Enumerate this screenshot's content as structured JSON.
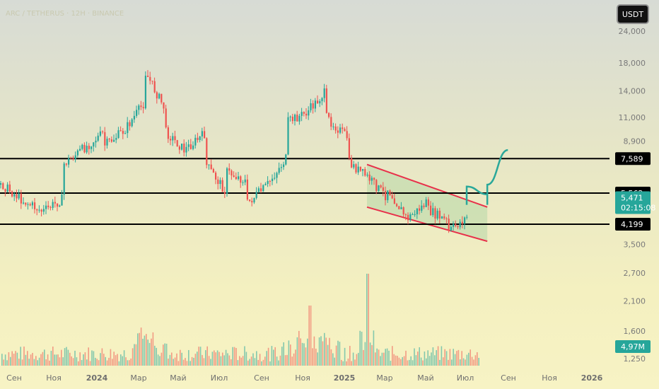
{
  "header": {
    "symbol_text": "ARC / TETHERUS · 12Н · BINANCE",
    "currency_button": "USDT"
  },
  "colors": {
    "up": "#26a69a",
    "down": "#ef5350",
    "level_line": "#000000",
    "channel_line": "#e8304a",
    "channel_fill": "#b7d7a8",
    "projection": "#2aa89a",
    "price_label_bg": "#26a69a",
    "level_label_bg": "#000000"
  },
  "chart_data": {
    "type": "candlestick",
    "price_scale": "log",
    "y_ticks": [
      {
        "label": "24,000",
        "value": 24000
      },
      {
        "label": "18,000",
        "value": 18000
      },
      {
        "label": "14,000",
        "value": 14000
      },
      {
        "label": "11,000",
        "value": 11000
      },
      {
        "label": "8,900",
        "value": 8900
      },
      {
        "label": "3,500",
        "value": 3500
      },
      {
        "label": "2,700",
        "value": 2700
      },
      {
        "label": "2,100",
        "value": 2100
      },
      {
        "label": "1,600",
        "value": 1600
      },
      {
        "label": "1,250",
        "value": 1250
      }
    ],
    "x_ticks": [
      "Сен",
      "Ноя",
      "2024",
      "Мар",
      "Май",
      "Июл",
      "Сен",
      "Ноя",
      "2025",
      "Мар",
      "Май",
      "Июл",
      "Сен",
      "Ноя",
      "2026"
    ],
    "horizontal_levels": [
      {
        "label": "7,589",
        "value": 7589
      },
      {
        "label": "5,562",
        "value": 5562
      },
      {
        "label": "4,199",
        "value": 4199
      }
    ],
    "current_price": {
      "label": "5,471",
      "value": 5471,
      "countdown": "02:15:08"
    },
    "volume_label": "4,97M",
    "price_path": [
      {
        "date": "2023-08",
        "price": 6000
      },
      {
        "date": "2023-09",
        "price": 5200
      },
      {
        "date": "2023-10",
        "price": 4700
      },
      {
        "date": "2023-11",
        "price": 5300
      },
      {
        "date": "2023-11",
        "price": 7200
      },
      {
        "date": "2023-12",
        "price": 8300
      },
      {
        "date": "2024-01",
        "price": 9600
      },
      {
        "date": "2024-01",
        "price": 8500
      },
      {
        "date": "2024-02",
        "price": 9800
      },
      {
        "date": "2024-03",
        "price": 12500
      },
      {
        "date": "2024-03",
        "price": 17000
      },
      {
        "date": "2024-04",
        "price": 12000
      },
      {
        "date": "2024-04",
        "price": 9800
      },
      {
        "date": "2024-05",
        "price": 8200
      },
      {
        "date": "2024-06",
        "price": 9500
      },
      {
        "date": "2024-06",
        "price": 7300
      },
      {
        "date": "2024-07",
        "price": 5700
      },
      {
        "date": "2024-07",
        "price": 6800
      },
      {
        "date": "2024-08",
        "price": 6200
      },
      {
        "date": "2024-08",
        "price": 5000
      },
      {
        "date": "2024-09",
        "price": 5900
      },
      {
        "date": "2024-10",
        "price": 7600
      },
      {
        "date": "2024-10",
        "price": 10500
      },
      {
        "date": "2024-11",
        "price": 11500
      },
      {
        "date": "2024-12",
        "price": 14000
      },
      {
        "date": "2024-12",
        "price": 11000
      },
      {
        "date": "2025-01",
        "price": 9200
      },
      {
        "date": "2025-01",
        "price": 7400
      },
      {
        "date": "2025-02",
        "price": 6400
      },
      {
        "date": "2025-03",
        "price": 5400
      },
      {
        "date": "2025-03",
        "price": 5900
      },
      {
        "date": "2025-04",
        "price": 4400
      },
      {
        "date": "2025-05",
        "price": 5100
      },
      {
        "date": "2025-05",
        "price": 4800
      },
      {
        "date": "2025-06",
        "price": 4300
      },
      {
        "date": "2025-06",
        "price": 3900
      },
      {
        "date": "2025-07",
        "price": 4500
      },
      {
        "date": "2025-07",
        "price": 5000
      }
    ],
    "projection_path": [
      {
        "date": "2025-07",
        "price": 5000
      },
      {
        "date": "2025-07",
        "price": 5900
      },
      {
        "date": "2025-08",
        "price": 5500
      },
      {
        "date": "2025-08",
        "price": 5000
      },
      {
        "date": "2025-08",
        "price": 6000
      },
      {
        "date": "2025-09",
        "price": 8200
      }
    ],
    "channel": {
      "upper": [
        {
          "date": "2025-02",
          "price": 7200
        },
        {
          "date": "2025-08",
          "price": 4900
        }
      ],
      "lower": [
        {
          "date": "2025-02",
          "price": 4900
        },
        {
          "date": "2025-08",
          "price": 3600
        }
      ]
    }
  }
}
